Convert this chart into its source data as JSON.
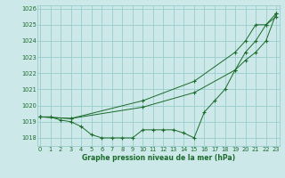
{
  "xlabel": "Graphe pression niveau de la mer (hPa)",
  "ylim": [
    1017.5,
    1026.2
  ],
  "xlim": [
    -0.3,
    23.3
  ],
  "yticks": [
    1018,
    1019,
    1020,
    1021,
    1022,
    1023,
    1024,
    1025,
    1026
  ],
  "xticks": [
    0,
    1,
    2,
    3,
    4,
    5,
    6,
    7,
    8,
    9,
    10,
    11,
    12,
    13,
    14,
    15,
    16,
    17,
    18,
    19,
    20,
    21,
    22,
    23
  ],
  "bg_color": "#cce8e8",
  "grid_color": "#99cccc",
  "line_color": "#1a6b2a",
  "line_dense_x": [
    0,
    1,
    2,
    3,
    4,
    5,
    6,
    7,
    8,
    9,
    10,
    11,
    12,
    13,
    14,
    15,
    16,
    17,
    18,
    19,
    20,
    21,
    22,
    23
  ],
  "line_dense_y": [
    1019.3,
    1019.3,
    1019.1,
    1019.0,
    1018.7,
    1018.2,
    1018.0,
    1018.0,
    1018.0,
    1018.0,
    1018.5,
    1018.5,
    1018.5,
    1018.5,
    1018.3,
    1018.0,
    1019.6,
    1020.3,
    1021.0,
    1022.2,
    1023.3,
    1024.0,
    1025.0,
    1025.5
  ],
  "line_upper1_x": [
    0,
    3,
    10,
    15,
    19,
    20,
    21,
    22,
    23
  ],
  "line_upper1_y": [
    1019.3,
    1019.2,
    1019.9,
    1020.8,
    1022.2,
    1022.8,
    1023.3,
    1024.0,
    1025.7
  ],
  "line_upper2_x": [
    0,
    3,
    10,
    15,
    19,
    20,
    21,
    22,
    23
  ],
  "line_upper2_y": [
    1019.3,
    1019.2,
    1020.3,
    1021.5,
    1023.3,
    1024.0,
    1025.0,
    1025.0,
    1025.7
  ]
}
